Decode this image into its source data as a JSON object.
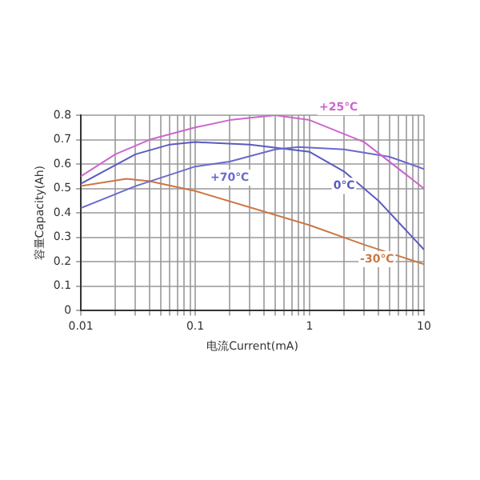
{
  "chart_data": {
    "type": "line",
    "xlabel": "电流Current(mA)",
    "ylabel": "容量Capacity(Ah)",
    "log": "x",
    "grid": true,
    "legend": false,
    "marker": "none",
    "line_style": "solid",
    "xlim": [
      0.01,
      10
    ],
    "ylim": [
      0,
      0.8
    ],
    "xticks": [
      0.01,
      {
        "value": 0.02,
        "label": null
      },
      {
        "value": 0.03,
        "label": null
      },
      {
        "value": 0.04,
        "label": null
      },
      {
        "value": 0.05,
        "label": null
      },
      {
        "value": 0.06,
        "label": null
      },
      {
        "value": 0.07,
        "label": null
      },
      {
        "value": 0.08,
        "label": null
      },
      {
        "value": 0.09,
        "label": null
      },
      0.1,
      {
        "value": 0.2,
        "label": null
      },
      {
        "value": 0.3,
        "label": null
      },
      {
        "value": 0.4,
        "label": null
      },
      {
        "value": 0.5,
        "label": null
      },
      {
        "value": 0.6,
        "label": null
      },
      {
        "value": 0.7,
        "label": null
      },
      {
        "value": 0.8,
        "label": null
      },
      {
        "value": 0.9,
        "label": null
      },
      1,
      {
        "value": 2,
        "label": null
      },
      {
        "value": 3,
        "label": null
      },
      {
        "value": 4,
        "label": null
      },
      {
        "value": 5,
        "label": null
      },
      {
        "value": 6,
        "label": null
      },
      {
        "value": 7,
        "label": null
      },
      {
        "value": 8,
        "label": null
      },
      {
        "value": 9,
        "label": null
      },
      10
    ],
    "yticks": [
      0,
      0.1,
      0.2,
      0.3,
      0.4,
      0.5,
      0.6,
      0.7,
      0.8
    ],
    "series": [
      {
        "name": "+25℃",
        "color": "#cc66cc",
        "x": [
          0.01,
          0.02,
          0.04,
          0.1,
          0.2,
          0.5,
          1,
          3,
          10
        ],
        "values": [
          0.55,
          0.64,
          0.7,
          0.75,
          0.78,
          0.8,
          0.78,
          0.69,
          0.5
        ]
      },
      {
        "name": "+70℃",
        "color": "#6a6ad0",
        "x": [
          0.01,
          0.03,
          0.1,
          0.2,
          0.5,
          0.8,
          2,
          5,
          10
        ],
        "values": [
          0.42,
          0.51,
          0.59,
          0.61,
          0.66,
          0.67,
          0.66,
          0.63,
          0.58
        ]
      },
      {
        "name": "0℃",
        "color": "#5a5ac0",
        "x": [
          0.01,
          0.03,
          0.06,
          0.1,
          0.3,
          1,
          2,
          4,
          10
        ],
        "values": [
          0.52,
          0.64,
          0.68,
          0.69,
          0.68,
          0.65,
          0.57,
          0.45,
          0.25
        ]
      },
      {
        "name": "-30℃",
        "color": "#cc7744",
        "x": [
          0.01,
          0.025,
          0.04,
          0.1,
          1,
          3,
          10
        ],
        "values": [
          0.51,
          0.54,
          0.53,
          0.49,
          0.35,
          0.27,
          0.19
        ]
      }
    ]
  }
}
